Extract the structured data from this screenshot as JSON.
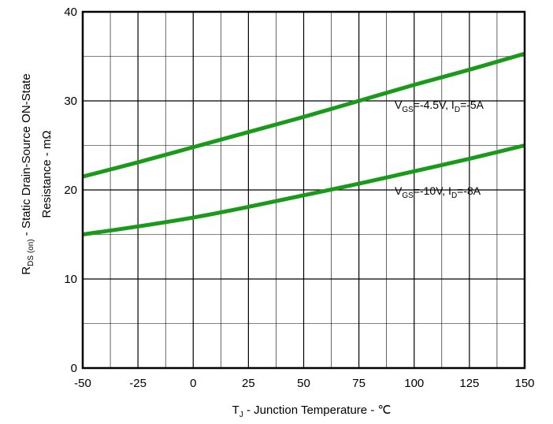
{
  "chart_data": {
    "type": "line",
    "x_axis": {
      "title": "T",
      "title_sub": "J",
      "title_rest": " - Junction Temperature - ℃",
      "range": [
        -50,
        150
      ],
      "ticks": [
        -50,
        -25,
        0,
        25,
        50,
        75,
        100,
        125,
        150
      ],
      "minor_step": 12.5
    },
    "y_axis": {
      "line1_main": "R",
      "line1_sub": "DS (on)",
      "line1_rest": " - Static Drain-Source ON-State",
      "line2": "Resistance - mΩ",
      "range": [
        0,
        40
      ],
      "ticks": [
        0,
        10,
        20,
        30,
        40
      ],
      "minor_step": 5
    },
    "grid": true,
    "series": [
      {
        "color": "#1a9a1a",
        "x": [
          -50,
          -25,
          0,
          25,
          50,
          75,
          100,
          125,
          150
        ],
        "y": [
          21.5,
          23.1,
          24.8,
          26.5,
          28.2,
          30.0,
          31.8,
          33.5,
          35.3
        ],
        "label_parts": [
          "V",
          "GS",
          "=-4.5V, I",
          "D",
          "=-5A"
        ]
      },
      {
        "color": "#1a9a1a",
        "x": [
          -50,
          -25,
          0,
          25,
          50,
          75,
          100,
          125,
          150
        ],
        "y": [
          15.0,
          15.9,
          16.9,
          18.1,
          19.4,
          20.7,
          22.1,
          23.5,
          25.0
        ],
        "label_parts": [
          "V",
          "GS",
          "=-10V, I",
          "D",
          "=-8A"
        ]
      }
    ]
  }
}
